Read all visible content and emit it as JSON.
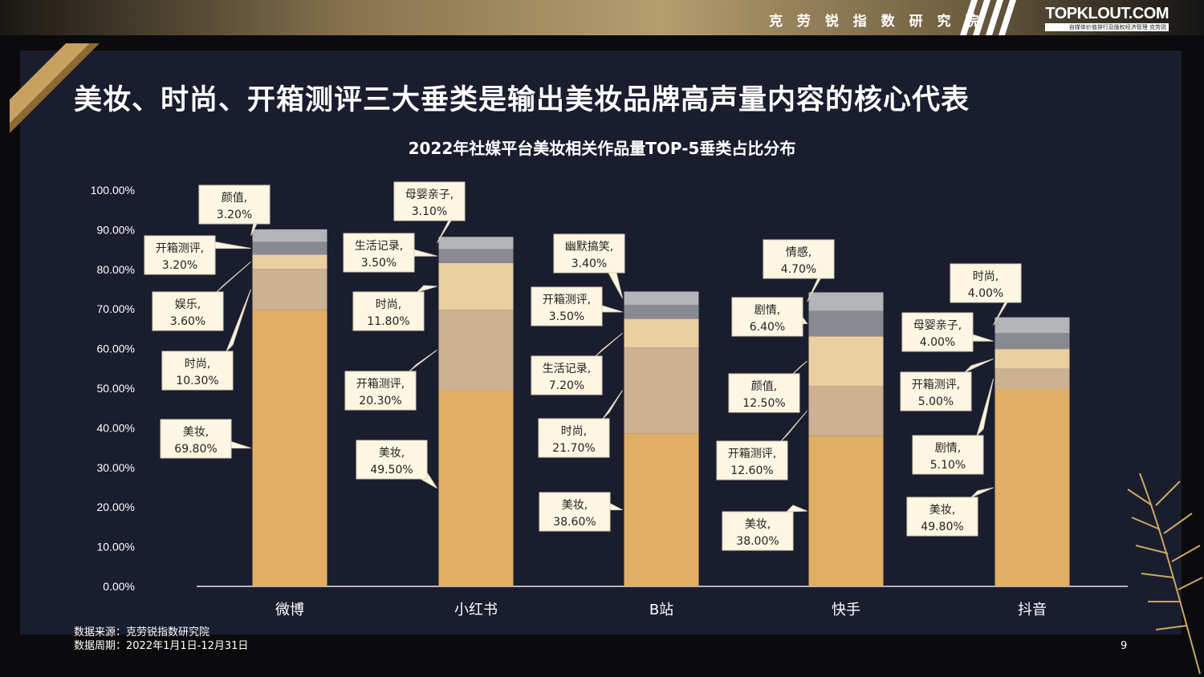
{
  "header": {
    "institute": "克 劳 锐 指 数 研 究 院",
    "brand": "TOPKLOUT.COM",
    "brand_sub": "自媒体价值排行及版权经济管理 克劳锐"
  },
  "headline": "美妆、时尚、开箱测评三大垂类是输出美妆品牌高声量内容的核心代表",
  "footer": {
    "source": "数据来源：克劳锐指数研究院",
    "period": "数据周期：2022年1月1日-12月31日",
    "page": "9"
  },
  "colors": {
    "美妆": "#e0ae64",
    "seg2": "#ccb192",
    "seg3": "#ead0a0",
    "seg4": "#888a90",
    "seg5": "#b2b4b8"
  },
  "chart_data": {
    "type": "bar",
    "stacked": true,
    "title": "2022年社媒平台美妆相关作品量TOP-5垂类占比分布",
    "ylim": [
      0,
      100
    ],
    "yticks": [
      "0.00%",
      "10.00%",
      "20.00%",
      "30.00%",
      "40.00%",
      "50.00%",
      "60.00%",
      "70.00%",
      "80.00%",
      "90.00%",
      "100.00%"
    ],
    "categories": [
      "微博",
      "小红书",
      "B站",
      "快手",
      "抖音"
    ],
    "stacks": [
      {
        "category": "微博",
        "segments": [
          {
            "name": "美妆",
            "value": 69.8,
            "label": "69.80%"
          },
          {
            "name": "时尚",
            "value": 10.3,
            "label": "10.30%"
          },
          {
            "name": "娱乐",
            "value": 3.6,
            "label": "3.60%"
          },
          {
            "name": "开箱测评",
            "value": 3.2,
            "label": "3.20%"
          },
          {
            "name": "颜值",
            "value": 3.2,
            "label": "3.20%"
          }
        ]
      },
      {
        "category": "小红书",
        "segments": [
          {
            "name": "美妆",
            "value": 49.5,
            "label": "49.50%"
          },
          {
            "name": "开箱测评",
            "value": 20.3,
            "label": "20.30%"
          },
          {
            "name": "时尚",
            "value": 11.8,
            "label": "11.80%"
          },
          {
            "name": "生活记录",
            "value": 3.5,
            "label": "3.50%"
          },
          {
            "name": "母婴亲子",
            "value": 3.1,
            "label": "3.10%"
          }
        ]
      },
      {
        "category": "B站",
        "segments": [
          {
            "name": "美妆",
            "value": 38.6,
            "label": "38.60%"
          },
          {
            "name": "时尚",
            "value": 21.7,
            "label": "21.70%"
          },
          {
            "name": "生活记录",
            "value": 7.2,
            "label": "7.20%"
          },
          {
            "name": "开箱测评",
            "value": 3.5,
            "label": "3.50%"
          },
          {
            "name": "幽默搞笑",
            "value": 3.4,
            "label": "3.40%"
          }
        ]
      },
      {
        "category": "快手",
        "segments": [
          {
            "name": "美妆",
            "value": 38.0,
            "label": "38.00%"
          },
          {
            "name": "开箱测评",
            "value": 12.6,
            "label": "12.60%"
          },
          {
            "name": "颜值",
            "value": 12.5,
            "label": "12.50%"
          },
          {
            "name": "剧情",
            "value": 6.4,
            "label": "6.40%"
          },
          {
            "name": "情感",
            "value": 4.7,
            "label": "4.70%"
          }
        ]
      },
      {
        "category": "抖音",
        "segments": [
          {
            "name": "美妆",
            "value": 49.8,
            "label": "49.80%"
          },
          {
            "name": "剧情",
            "value": 5.1,
            "label": "5.10%"
          },
          {
            "name": "开箱测评",
            "value": 5.0,
            "label": "5.00%"
          },
          {
            "name": "母婴亲子",
            "value": 4.0,
            "label": "4.00%"
          },
          {
            "name": "时尚",
            "value": 4.0,
            "label": "4.00%"
          }
        ]
      }
    ],
    "grid": false,
    "legend": "none"
  }
}
